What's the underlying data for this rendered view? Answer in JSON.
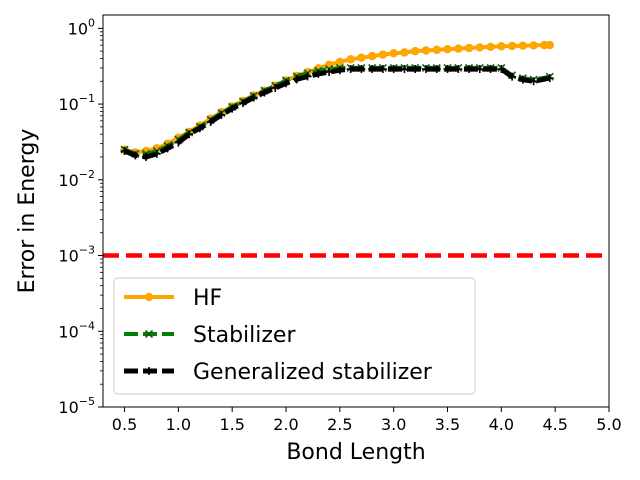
{
  "chart_data": {
    "type": "line",
    "xlabel": "Bond Length",
    "ylabel": "Error in Energy",
    "yscale": "log",
    "xlim": [
      0.3,
      5.0
    ],
    "ylim": [
      1e-05,
      1.5
    ],
    "x_ticks": [
      0.5,
      1.0,
      1.5,
      2.0,
      2.5,
      3.0,
      3.5,
      4.0,
      4.5,
      5.0
    ],
    "x_tick_labels": [
      "0.5",
      "1.0",
      "1.5",
      "2.0",
      "2.5",
      "3.0",
      "3.5",
      "4.0",
      "4.5",
      "5.0"
    ],
    "y_ticks": [
      {
        "value": 1e-05,
        "base": "10",
        "exp": "−5"
      },
      {
        "value": 0.0001,
        "base": "10",
        "exp": "−4"
      },
      {
        "value": 0.001,
        "base": "10",
        "exp": "−3"
      },
      {
        "value": 0.01,
        "base": "10",
        "exp": "−2"
      },
      {
        "value": 0.1,
        "base": "10",
        "exp": "−1"
      },
      {
        "value": 1,
        "base": "10",
        "exp": "0"
      }
    ],
    "reference_line": {
      "y": 0.001,
      "color": "#ff0000",
      "style": "dashed"
    },
    "legend_position": "lower-left",
    "series": [
      {
        "name": "HF",
        "color": "#ffa500",
        "marker": "circle",
        "linestyle": "solid",
        "x": [
          0.5,
          0.6,
          0.7,
          0.8,
          0.9,
          1.0,
          1.1,
          1.2,
          1.3,
          1.4,
          1.5,
          1.6,
          1.7,
          1.8,
          1.9,
          2.0,
          2.1,
          2.2,
          2.3,
          2.4,
          2.5,
          2.6,
          2.7,
          2.8,
          2.9,
          3.0,
          3.1,
          3.2,
          3.3,
          3.4,
          3.5,
          3.6,
          3.7,
          3.8,
          3.9,
          4.0,
          4.1,
          4.2,
          4.3,
          4.4,
          4.45
        ],
        "y": [
          0.025,
          0.023,
          0.024,
          0.026,
          0.03,
          0.036,
          0.043,
          0.052,
          0.064,
          0.078,
          0.093,
          0.11,
          0.13,
          0.15,
          0.175,
          0.205,
          0.235,
          0.265,
          0.295,
          0.33,
          0.36,
          0.39,
          0.41,
          0.43,
          0.45,
          0.47,
          0.48,
          0.5,
          0.51,
          0.52,
          0.53,
          0.54,
          0.55,
          0.56,
          0.57,
          0.58,
          0.585,
          0.59,
          0.595,
          0.6,
          0.6
        ]
      },
      {
        "name": "Stabilizer",
        "color": "#008000",
        "marker": "x",
        "linestyle": "dashed",
        "x": [
          0.5,
          0.6,
          0.7,
          0.8,
          0.9,
          1.0,
          1.1,
          1.2,
          1.3,
          1.4,
          1.5,
          1.6,
          1.7,
          1.8,
          1.9,
          2.0,
          2.1,
          2.2,
          2.3,
          2.4,
          2.5,
          2.6,
          2.7,
          2.8,
          2.9,
          3.0,
          3.1,
          3.2,
          3.3,
          3.4,
          3.5,
          3.6,
          3.7,
          3.8,
          3.9,
          4.0,
          4.1,
          4.2,
          4.3,
          4.45
        ],
        "y": [
          0.025,
          0.022,
          0.022,
          0.024,
          0.028,
          0.034,
          0.042,
          0.05,
          0.062,
          0.076,
          0.092,
          0.108,
          0.128,
          0.15,
          0.175,
          0.205,
          0.232,
          0.255,
          0.275,
          0.29,
          0.3,
          0.3,
          0.3,
          0.3,
          0.3,
          0.3,
          0.3,
          0.3,
          0.3,
          0.3,
          0.3,
          0.3,
          0.3,
          0.3,
          0.3,
          0.3,
          0.24,
          0.22,
          0.21,
          0.23
        ]
      },
      {
        "name": "Generalized stabilizer",
        "color": "#000000",
        "marker": "plus",
        "linestyle": "dashed",
        "x": [
          0.5,
          0.6,
          0.7,
          0.8,
          0.9,
          1.0,
          1.1,
          1.2,
          1.3,
          1.4,
          1.5,
          1.6,
          1.7,
          1.8,
          1.9,
          2.0,
          2.1,
          2.2,
          2.3,
          2.4,
          2.5,
          2.6,
          2.7,
          2.8,
          2.9,
          3.0,
          3.1,
          3.2,
          3.3,
          3.4,
          3.5,
          3.6,
          3.7,
          3.8,
          3.9,
          4.0,
          4.1,
          4.2,
          4.3,
          4.45
        ],
        "y": [
          0.024,
          0.021,
          0.02,
          0.022,
          0.026,
          0.031,
          0.04,
          0.048,
          0.058,
          0.072,
          0.087,
          0.103,
          0.122,
          0.142,
          0.163,
          0.188,
          0.212,
          0.232,
          0.25,
          0.265,
          0.28,
          0.29,
          0.29,
          0.29,
          0.29,
          0.29,
          0.29,
          0.29,
          0.29,
          0.29,
          0.29,
          0.29,
          0.29,
          0.29,
          0.29,
          0.29,
          0.23,
          0.21,
          0.2,
          0.22
        ]
      }
    ]
  }
}
